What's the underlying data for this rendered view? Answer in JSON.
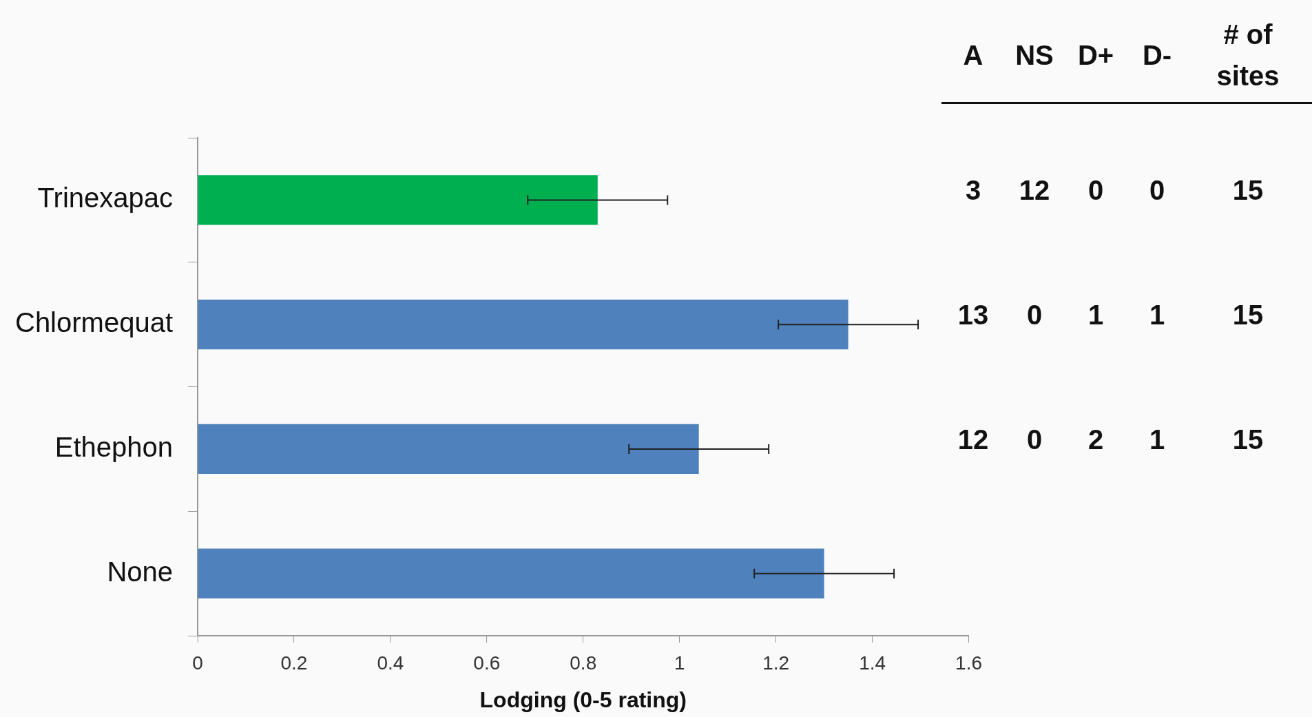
{
  "chart_data": [
    {
      "type": "bar",
      "orientation": "horizontal",
      "xlabel": "Lodging (0-5 rating)",
      "categories": [
        "Trinexapac",
        "Chlormequat",
        "Ethephon",
        "None"
      ],
      "values": [
        0.83,
        1.35,
        1.04,
        1.3
      ],
      "colors": [
        "#00b050",
        "#4f81bd",
        "#4f81bd",
        "#4f81bd"
      ],
      "errors": [
        [
          0.685,
          0.975
        ],
        [
          1.205,
          1.495
        ],
        [
          0.895,
          1.185
        ],
        [
          1.155,
          1.445
        ]
      ],
      "xlim": [
        0,
        1.6
      ],
      "xticks": [
        0,
        0.2,
        0.4,
        0.6,
        0.8,
        1,
        1.2,
        1.4,
        1.6
      ],
      "grid": false,
      "legend": false
    },
    {
      "type": "other",
      "categories": [
        "A",
        "NS",
        "D+",
        "D-",
        "# of sites"
      ],
      "cell_labels": [
        [
          "3",
          "12",
          "0",
          "0",
          "15"
        ],
        [
          "13",
          "0",
          "1",
          "1",
          "15"
        ],
        [
          "12",
          "0",
          "2",
          "1",
          "15"
        ]
      ]
    }
  ]
}
